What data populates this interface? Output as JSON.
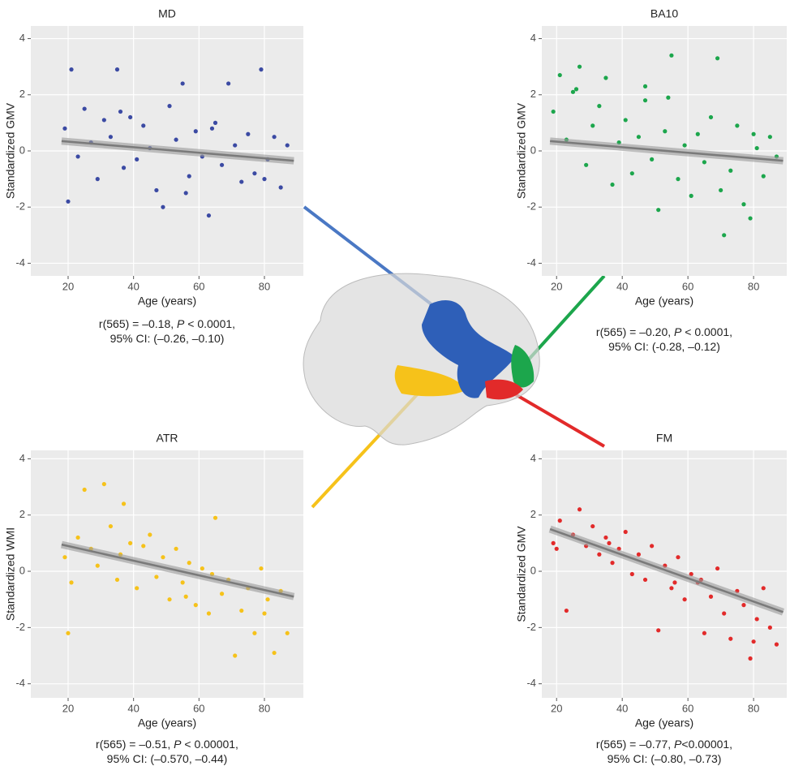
{
  "chart_data": [
    {
      "type": "scatter",
      "title": "MD",
      "xlabel": "Age (years)",
      "ylabel": "Standardized GMV",
      "color": "#3b4aa3",
      "note": [
        [
          "r(565) = –0.18, ",
          "P",
          " < 0.0001,"
        ],
        [
          "95% CI: (–0.26, –0.10)"
        ]
      ],
      "x": [
        19,
        21,
        23,
        25,
        27,
        29,
        31,
        33,
        35,
        37,
        39,
        41,
        43,
        45,
        47,
        49,
        51,
        53,
        55,
        57,
        59,
        61,
        63,
        65,
        67,
        69,
        71,
        73,
        75,
        77,
        79,
        81,
        83,
        85,
        87,
        20,
        36,
        56,
        64,
        80
      ],
      "y": [
        0.8,
        2.9,
        -0.2,
        1.5,
        0.3,
        -1.0,
        1.1,
        0.5,
        2.9,
        -0.6,
        1.2,
        -0.3,
        0.9,
        0.1,
        -1.4,
        -2.0,
        1.6,
        0.4,
        2.4,
        -0.9,
        0.7,
        -0.2,
        -2.3,
        1.0,
        -0.5,
        2.4,
        0.2,
        -1.1,
        0.6,
        -0.8,
        2.9,
        -0.3,
        0.5,
        -1.3,
        0.2,
        -1.8,
        1.4,
        -1.5,
        0.8,
        -1.0
      ],
      "fit": {
        "x": [
          18,
          89
        ],
        "y": [
          0.35,
          -0.35
        ]
      },
      "xlim": [
        8.6,
        91.9
      ],
      "ylim": [
        -4.45,
        4.45
      ],
      "xticks": [
        20,
        40,
        60,
        80
      ],
      "yticks": [
        -4,
        -2,
        0,
        2,
        4
      ],
      "grid": true
    },
    {
      "type": "scatter",
      "title": "BA10",
      "xlabel": "Age (years)",
      "ylabel": "Standardized GMV",
      "color": "#1ca64c",
      "note": [
        [
          "r(565) = –0.20, ",
          "P",
          " < 0.0001,"
        ],
        [
          "95% CI: (-0.28, –0.12)"
        ]
      ],
      "x": [
        19,
        21,
        23,
        25,
        27,
        29,
        31,
        33,
        35,
        37,
        39,
        41,
        43,
        45,
        47,
        49,
        51,
        53,
        55,
        57,
        59,
        61,
        63,
        65,
        67,
        69,
        71,
        73,
        75,
        77,
        79,
        81,
        83,
        85,
        87,
        26,
        47,
        54,
        70,
        80
      ],
      "y": [
        1.4,
        2.7,
        0.4,
        2.1,
        3.0,
        -0.5,
        0.9,
        1.6,
        2.6,
        -1.2,
        0.3,
        1.1,
        -0.8,
        0.5,
        1.8,
        -0.3,
        -2.1,
        0.7,
        3.4,
        -1.0,
        0.2,
        -1.6,
        0.6,
        -0.4,
        1.2,
        3.3,
        -3.0,
        -0.7,
        0.9,
        -1.9,
        -2.4,
        0.1,
        -0.9,
        0.5,
        -0.2,
        2.2,
        2.3,
        1.9,
        -1.4,
        0.6
      ],
      "fit": {
        "x": [
          18,
          89
        ],
        "y": [
          0.35,
          -0.35
        ]
      },
      "xlim": [
        15.5,
        90.1
      ],
      "ylim": [
        -4.45,
        4.45
      ],
      "xticks": [
        20,
        40,
        60,
        80
      ],
      "yticks": [
        -4,
        -2,
        0,
        2,
        4
      ],
      "grid": true
    },
    {
      "type": "scatter",
      "title": "ATR",
      "xlabel": "Age (years)",
      "ylabel": "Standardized WMI",
      "color": "#f6c21a",
      "note": [
        [
          "r(565) = –0.51, ",
          "P",
          " < 0.00001,"
        ],
        [
          "95% CI: (–0.570, –0.44)"
        ]
      ],
      "x": [
        19,
        21,
        23,
        25,
        27,
        29,
        31,
        33,
        35,
        37,
        39,
        41,
        43,
        45,
        47,
        49,
        51,
        53,
        55,
        57,
        59,
        61,
        63,
        65,
        67,
        69,
        71,
        73,
        75,
        77,
        79,
        81,
        83,
        85,
        87,
        20,
        36,
        56,
        64,
        80
      ],
      "y": [
        0.5,
        -0.4,
        1.2,
        2.9,
        0.8,
        0.2,
        3.1,
        1.6,
        -0.3,
        2.4,
        1.0,
        -0.6,
        0.9,
        1.3,
        -0.2,
        0.5,
        -1.0,
        0.8,
        -0.4,
        0.3,
        -1.2,
        0.1,
        -1.5,
        1.9,
        -0.8,
        -0.3,
        -3.0,
        -1.4,
        -0.6,
        -2.2,
        0.1,
        -1.0,
        -2.9,
        -0.7,
        -2.2,
        -2.2,
        0.6,
        -0.9,
        -0.1,
        -1.5
      ],
      "fit": {
        "x": [
          18,
          89
        ],
        "y": [
          0.95,
          -0.9
        ]
      },
      "xlim": [
        8.6,
        91.9
      ],
      "ylim": [
        -4.5,
        4.3
      ],
      "xticks": [
        20,
        40,
        60,
        80
      ],
      "yticks": [
        -4,
        -2,
        0,
        2,
        4
      ],
      "grid": true
    },
    {
      "type": "scatter",
      "title": "FM",
      "xlabel": "Age (years)",
      "ylabel": "Standardized GMV",
      "color": "#e22a2a",
      "note": [
        [
          "r(565) = –0.77, ",
          "P",
          "<0.00001,"
        ],
        [
          "95% CI: (–0.80, –0.73)"
        ]
      ],
      "x": [
        19,
        21,
        23,
        25,
        27,
        29,
        31,
        33,
        35,
        37,
        39,
        41,
        43,
        45,
        47,
        49,
        51,
        53,
        55,
        57,
        59,
        61,
        63,
        65,
        67,
        69,
        71,
        73,
        75,
        77,
        79,
        81,
        83,
        85,
        87,
        20,
        36,
        56,
        64,
        80
      ],
      "y": [
        1.0,
        1.8,
        -1.4,
        1.3,
        2.2,
        0.9,
        1.6,
        0.6,
        1.2,
        0.3,
        0.8,
        1.4,
        -0.1,
        0.6,
        -0.3,
        0.9,
        -2.1,
        0.2,
        -0.6,
        0.5,
        -1.0,
        -0.1,
        -0.4,
        -2.2,
        -0.9,
        0.1,
        -1.5,
        -2.4,
        -0.7,
        -1.2,
        -3.1,
        -1.7,
        -0.6,
        -2.0,
        -2.6,
        0.8,
        1.0,
        -0.4,
        -0.3,
        -2.5
      ],
      "fit": {
        "x": [
          18,
          89
        ],
        "y": [
          1.5,
          -1.45
        ]
      },
      "xlim": [
        15.5,
        90.1
      ],
      "ylim": [
        -4.5,
        4.3
      ],
      "xticks": [
        20,
        40,
        60,
        80
      ],
      "yticks": [
        -4,
        -2,
        0,
        2,
        4
      ],
      "grid": true
    }
  ]
}
